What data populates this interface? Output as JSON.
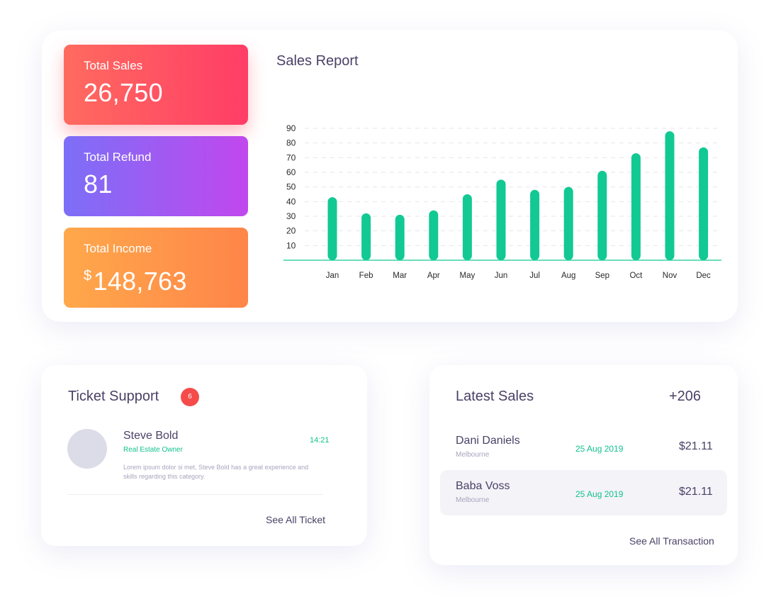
{
  "stats": {
    "total_sales": {
      "label": "Total Sales",
      "value": "26,750"
    },
    "total_refund": {
      "label": "Total Refund",
      "value": "81"
    },
    "total_income": {
      "label": "Total Income",
      "currency": "$",
      "value": "148,763"
    }
  },
  "sales_report": {
    "title": "Sales Report"
  },
  "chart_data": {
    "type": "bar",
    "title": "Sales Report",
    "categories": [
      "Jan",
      "Feb",
      "Mar",
      "Apr",
      "May",
      "Jun",
      "Jul",
      "Aug",
      "Sep",
      "Oct",
      "Nov",
      "Dec"
    ],
    "values": [
      43,
      32,
      31,
      34,
      45,
      55,
      48,
      50,
      61,
      73,
      88,
      77
    ],
    "y_ticks": [
      10,
      20,
      30,
      40,
      50,
      60,
      70,
      80,
      90
    ],
    "ylim": [
      0,
      90
    ],
    "grid": true,
    "bar_color": "#12c993"
  },
  "ticket_support": {
    "title": "Ticket Support",
    "badge": "6",
    "ticket": {
      "name": "Steve Bold",
      "role": "Real Estate Owner",
      "time": "14:21",
      "message": "Lorem ipsum dolor si met, Steve Bold has a great experience and skills regarding this category."
    },
    "link": "See All Ticket"
  },
  "latest_sales": {
    "title": "Latest Sales",
    "count": "+206",
    "rows": [
      {
        "name": "Dani Daniels",
        "city": "Melbourne",
        "date": "25 Aug 2019",
        "amount": "$21.11"
      },
      {
        "name": "Baba Voss",
        "city": "Melbourne",
        "date": "25 Aug 2019",
        "amount": "$21.11"
      }
    ],
    "link": "See All Transaction"
  },
  "colors": {
    "accent_green": "#11c28c",
    "badge_red": "#f54b4b",
    "text_primary": "#4a4166"
  }
}
